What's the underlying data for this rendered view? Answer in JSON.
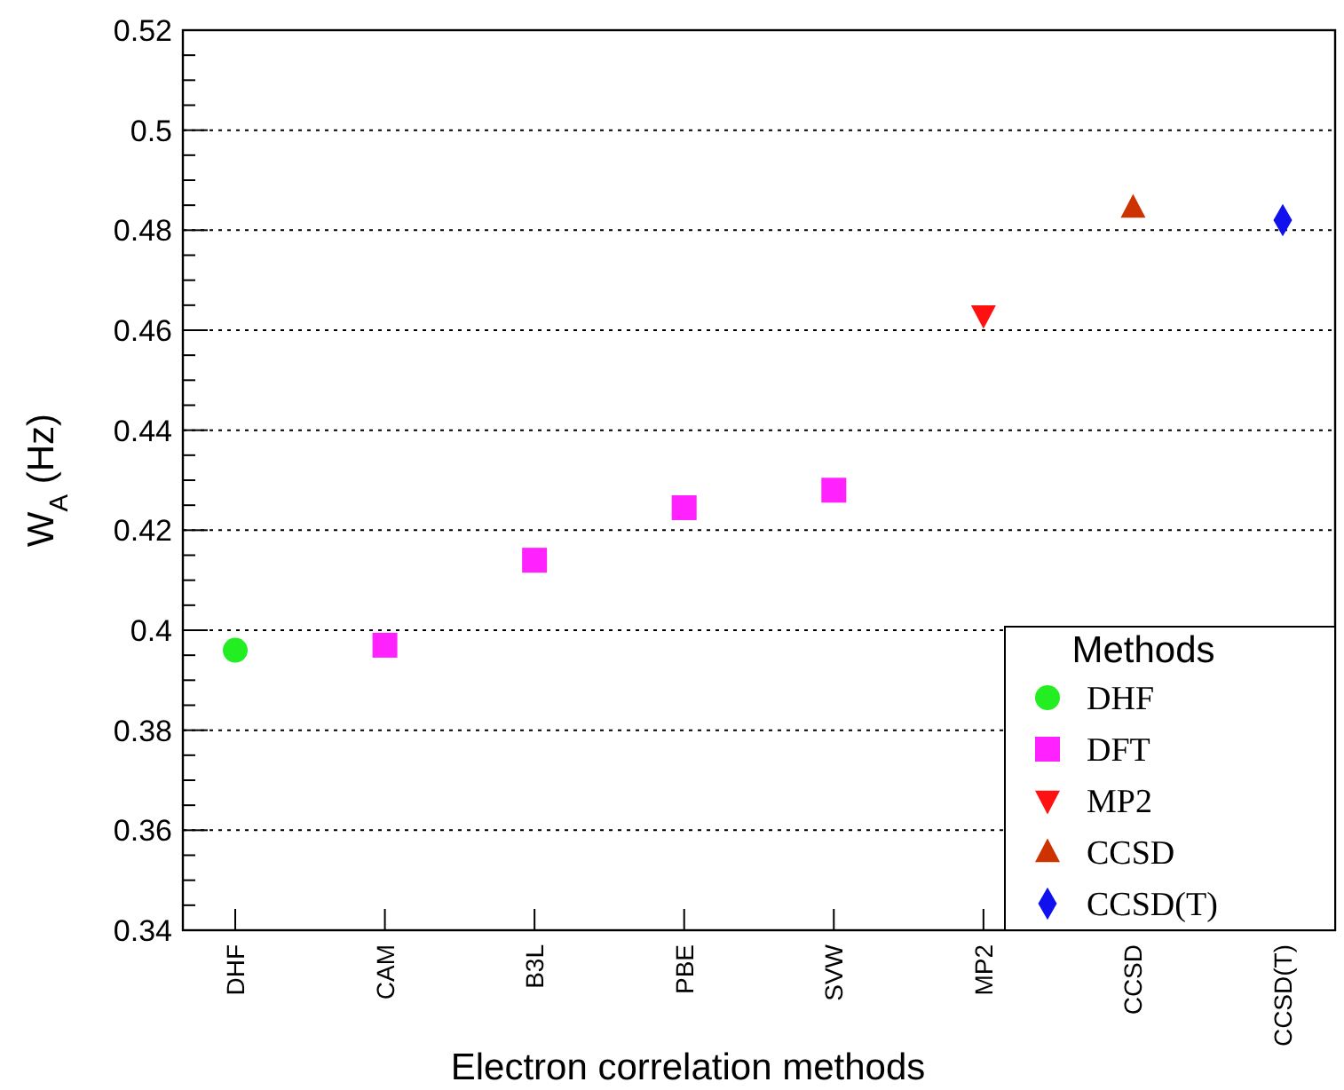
{
  "chart_data": {
    "type": "scatter",
    "xlabel": "Electron correlation methods",
    "ylabel": "W$_{A}$ (Hz)",
    "legend_title": "Methods",
    "categories": [
      "DHF",
      "CAM",
      "B3L",
      "PBE",
      "SVW",
      "MP2",
      "CCSD",
      "CCSD(T)"
    ],
    "series": [
      {
        "name": "DHF",
        "color": "#22ee22",
        "marker": "circle",
        "values": [
          0.396,
          null,
          null,
          null,
          null,
          null,
          null,
          null
        ]
      },
      {
        "name": "DFT",
        "color": "#ff22ff",
        "marker": "square",
        "values": [
          null,
          0.397,
          0.414,
          0.4245,
          0.428,
          null,
          null,
          null
        ]
      },
      {
        "name": "MP2",
        "color": "#ff1111",
        "marker": "triangle_down",
        "values": [
          null,
          null,
          null,
          null,
          null,
          0.463,
          null,
          null
        ]
      },
      {
        "name": "CCSD",
        "color": "#cc3300",
        "marker": "triangle",
        "values": [
          null,
          null,
          null,
          null,
          null,
          null,
          0.4845,
          null
        ]
      },
      {
        "name": "CCSD(T)",
        "color": "#1111ee",
        "marker": "diamond",
        "values": [
          null,
          null,
          null,
          null,
          null,
          null,
          null,
          0.482
        ]
      }
    ],
    "ylim": [
      0.34,
      0.52
    ],
    "yticks": [
      {
        "value": 0.34,
        "label": "0.34"
      },
      {
        "value": 0.36,
        "label": "0.36"
      },
      {
        "value": 0.38,
        "label": "0.38"
      },
      {
        "value": 0.4,
        "label": "0.4"
      },
      {
        "value": 0.42,
        "label": "0.42"
      },
      {
        "value": 0.44,
        "label": "0.44"
      },
      {
        "value": 0.46,
        "label": "0.46"
      },
      {
        "value": 0.48,
        "label": "0.48"
      },
      {
        "value": 0.5,
        "label": "0.5"
      },
      {
        "value": 0.52,
        "label": "0.52"
      }
    ],
    "grid": "y",
    "legend": "bottom right"
  }
}
